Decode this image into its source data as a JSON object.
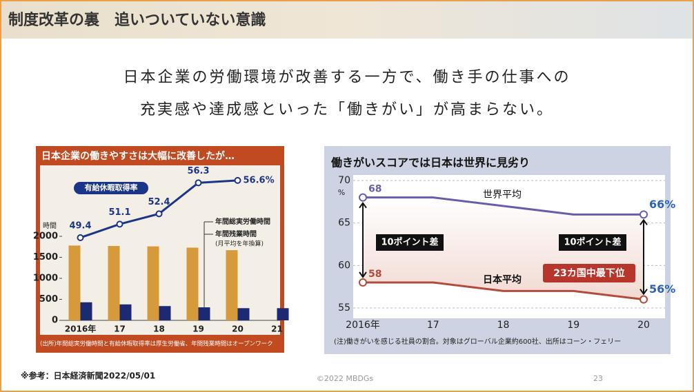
{
  "slide": {
    "title": "制度改革の裏　追いついていない意識",
    "lead": [
      "日本企業の労働環境が改善する一方で、働き手の仕事への",
      "充実感や達成感といった「働きがい」が高まらない。"
    ],
    "reference": "※参考：日本経済新聞2022/05/01",
    "copyright": "©2022 MBDGs",
    "page": 23
  },
  "chart_data": [
    {
      "type": "bar",
      "title": "日本企業の働きやすさは大幅に改善したが…",
      "categories": [
        "2016年",
        "17",
        "18",
        "19",
        "20",
        "21"
      ],
      "y_label": "時間",
      "ylim": [
        0,
        3500
      ],
      "yticks": [
        0,
        500,
        1000,
        1500,
        2000
      ],
      "y2lim": [
        39,
        57.5
      ],
      "series": [
        {
          "name": "年間総実労働時間",
          "color": "#d69a3a",
          "values": [
            1780,
            1770,
            1760,
            1730,
            1670,
            null
          ]
        },
        {
          "name": "年間残業時間",
          "name_note": "(月平均を年換算)",
          "color": "#1b2a72",
          "values": [
            430,
            380,
            340,
            310,
            290,
            290
          ]
        },
        {
          "name": "有給休暇取得率",
          "type": "line",
          "axis": "y2",
          "color": "#1b3588",
          "values": [
            49.4,
            51.1,
            52.4,
            56.3,
            56.6,
            null
          ],
          "value_labels": [
            "49.4",
            "51.1",
            "52.4",
            "56.3",
            "56.6%",
            null
          ]
        }
      ],
      "source": "(出所)年間総実労働時間と有給休暇取得率は厚生労働省、年間残業時間はオープンワーク"
    },
    {
      "type": "line",
      "title": "働きがいスコアでは日本は世界に見劣り",
      "categories": [
        "2016年",
        "17",
        "18",
        "19",
        "20"
      ],
      "ylim": [
        55,
        70
      ],
      "yticks": [
        55,
        60,
        65,
        70
      ],
      "y_unit": "%",
      "grid": true,
      "series": [
        {
          "name": "世界平均",
          "color": "#6b5cab",
          "values": [
            68,
            68,
            67,
            66,
            66
          ],
          "value_labels": [
            "68",
            null,
            null,
            null,
            "66%"
          ]
        },
        {
          "name": "日本平均",
          "color": "#b44a3c",
          "values": [
            58,
            58,
            57,
            57,
            56
          ],
          "value_labels": [
            "58",
            null,
            null,
            null,
            "56%"
          ]
        }
      ],
      "annotations": [
        "10ポイント差",
        "10ポイント差",
        "23カ国中最下位"
      ],
      "note": "(注)働きがいを感じる社員の割合。対象はグローバル企業約600社、出所はコーン・フェリー"
    }
  ]
}
